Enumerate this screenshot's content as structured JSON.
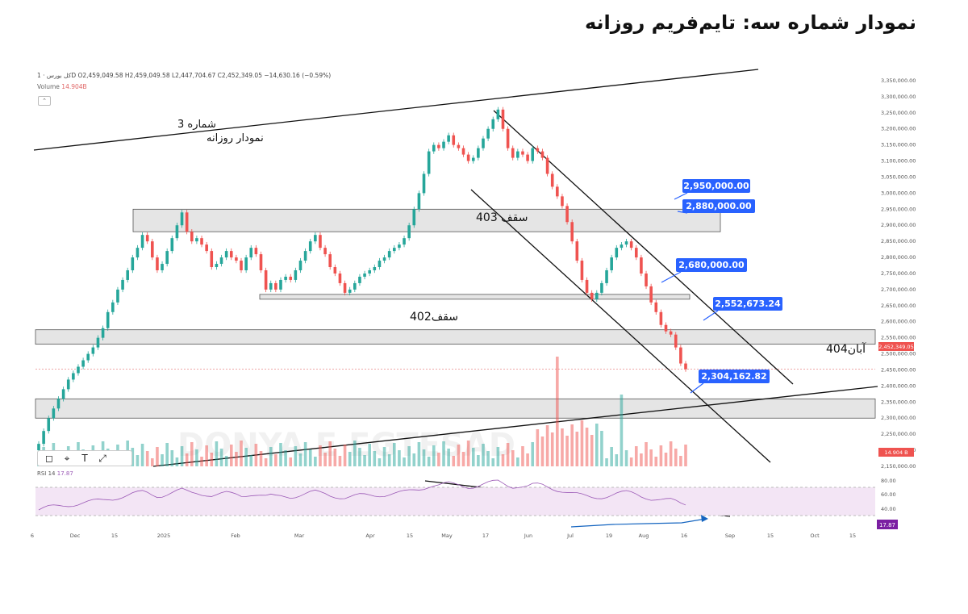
{
  "page_title": "نمودار شماره سه: تایم‌فریم روزانه",
  "header": {
    "symbol_line": "کل بورس · 1D  O2,459,049.58 H2,459,049.58 L2,447,704.67 C2,452,349.05 −14,630.16 (−0.59%)",
    "volume_label": "Volume",
    "volume_value": "14.904B",
    "collapse_btn": "⌃"
  },
  "annotations": {
    "chart_no": "شماره 3",
    "chart_subtitle": "نمودار روزانه",
    "ceiling_403": "سقف 403",
    "ceiling_402": "سقف402",
    "aban_404": "آبان404",
    "watermark": "DONYA E EGTESAD"
  },
  "price_tags": [
    "2,950,000.00",
    "2,880,000.00",
    "2,680,000.00",
    "2,552,673.24",
    "2,304,162.82"
  ],
  "current_price_tag": "2,452,349.05",
  "volume_tag": "14.904 B",
  "rsi": {
    "label": "RSI 14",
    "value": "17.87",
    "tag": "17.87"
  },
  "toolbar": [
    "◻",
    "⌖",
    "T",
    "⤢"
  ],
  "colors": {
    "up": "#26a69a",
    "down": "#ef5350",
    "tag_blue": "#2962ff",
    "rsi_line": "#9b59b6",
    "band": "#e5e5e5"
  },
  "chart_data": {
    "type": "candlestick",
    "ylim": [
      2150000,
      3370000
    ],
    "y_ticks": [
      "3,350,000.00",
      "3,300,000.00",
      "3,250,000.00",
      "3,200,000.00",
      "3,150,000.00",
      "3,100,000.00",
      "3,050,000.00",
      "3,000,000.00",
      "2,950,000.00",
      "2,900,000.00",
      "2,850,000.00",
      "2,800,000.00",
      "2,750,000.00",
      "2,700,000.00",
      "2,650,000.00",
      "2,600,000.00",
      "2,550,000.00",
      "2,500,000.00",
      "2,450,000.00",
      "2,400,000.00",
      "2,350,000.00",
      "2,300,000.00",
      "2,250,000.00",
      "2,200,000.00",
      "2,150,000.00"
    ],
    "x_ticks": [
      "6",
      "Dec",
      "15",
      "2025",
      "Feb",
      "Mar",
      "Apr",
      "15",
      "May",
      "17",
      "Jun",
      "Jul",
      "19",
      "Aug",
      "16",
      "Sep",
      "15",
      "Oct",
      "15"
    ],
    "rsi_ticks": [
      "80.00",
      "60.00",
      "40.00"
    ],
    "zones": [
      [
        2880000,
        2950000
      ],
      [
        2670000,
        2685000
      ],
      [
        2530000,
        2575000
      ],
      [
        2300000,
        2360000
      ]
    ],
    "close": [
      2220000,
      2260000,
      2300000,
      2330000,
      2360000,
      2390000,
      2420000,
      2440000,
      2460000,
      2480000,
      2500000,
      2520000,
      2550000,
      2580000,
      2630000,
      2660000,
      2700000,
      2730000,
      2760000,
      2800000,
      2830000,
      2870000,
      2850000,
      2800000,
      2760000,
      2780000,
      2820000,
      2860000,
      2900000,
      2940000,
      2880000,
      2850000,
      2860000,
      2840000,
      2820000,
      2770000,
      2780000,
      2800000,
      2820000,
      2800000,
      2790000,
      2760000,
      2800000,
      2830000,
      2810000,
      2760000,
      2700000,
      2720000,
      2700000,
      2730000,
      2740000,
      2730000,
      2760000,
      2790000,
      2820000,
      2850000,
      2870000,
      2830000,
      2810000,
      2770000,
      2750000,
      2720000,
      2690000,
      2700000,
      2720000,
      2740000,
      2750000,
      2760000,
      2770000,
      2790000,
      2800000,
      2820000,
      2830000,
      2840000,
      2860000,
      2900000,
      2950000,
      3000000,
      3060000,
      3130000,
      3150000,
      3140000,
      3160000,
      3180000,
      3150000,
      3140000,
      3120000,
      3100000,
      3110000,
      3140000,
      3170000,
      3200000,
      3230000,
      3260000,
      3200000,
      3140000,
      3110000,
      3130000,
      3120000,
      3100000,
      3140000,
      3130000,
      3110000,
      3060000,
      3020000,
      2990000,
      2960000,
      2910000,
      2850000,
      2790000,
      2730000,
      2690000,
      2670000,
      2690000,
      2720000,
      2760000,
      2800000,
      2830000,
      2840000,
      2850000,
      2830000,
      2800000,
      2750000,
      2710000,
      2660000,
      2630000,
      2590000,
      2570000,
      2560000,
      2520000,
      2470000,
      2452349
    ]
  }
}
